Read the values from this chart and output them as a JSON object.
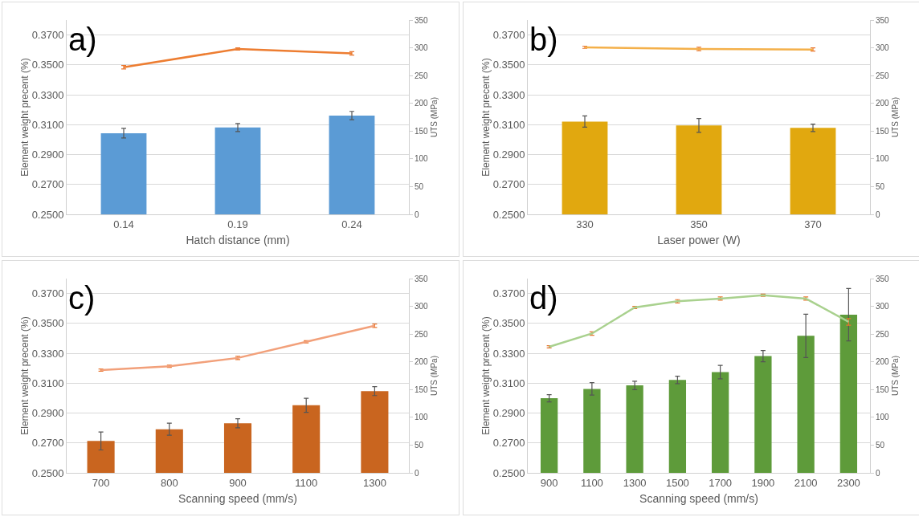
{
  "chart_data": [
    {
      "type": "bar",
      "annotations": [
        "a)"
      ],
      "xlabel": "Hatch distance (mm)",
      "ylabel": "Element weight precent (%)",
      "y2label": "UTS (MPa)",
      "categories": [
        "0.14",
        "0.19",
        "0.24"
      ],
      "series": [
        {
          "color": "#5b9bd5",
          "values": [
            0.3043,
            0.3081,
            0.3161
          ],
          "errors": [
            0.0032,
            0.0027,
            0.0028
          ]
        },
        {
          "type": "line",
          "axis": "y2",
          "color": "#ed7d31",
          "values": [
            265,
            298,
            290
          ],
          "errors": [
            3,
            2,
            3
          ]
        }
      ],
      "ylim": [
        0.25,
        0.38
      ],
      "yticks": [
        {
          "value": 0.25,
          "label": "0.2500"
        },
        {
          "value": 0.27,
          "label": "0.2700"
        },
        {
          "value": 0.29,
          "label": "0.2900"
        },
        {
          "value": 0.31,
          "label": "0.3100"
        },
        {
          "value": 0.33,
          "label": "0.3300"
        },
        {
          "value": 0.35,
          "label": "0.3500"
        },
        {
          "value": 0.37,
          "label": "0.3700"
        }
      ],
      "y2lim": [
        0,
        350
      ],
      "y2ticks": [
        0,
        50,
        100,
        150,
        200,
        250,
        300,
        350
      ],
      "grid": "y"
    },
    {
      "type": "bar",
      "annotations": [
        "b)"
      ],
      "xlabel": "Laser power (W)",
      "ylabel": "Element weight precent (%)",
      "y2label": "UTS (MPa)",
      "categories": [
        "330",
        "350",
        "370"
      ],
      "series": [
        {
          "color": "#e1a80f",
          "values": [
            0.3121,
            0.3095,
            0.3079
          ],
          "errors": [
            0.0038,
            0.0046,
            0.0025
          ]
        },
        {
          "type": "line",
          "axis": "y2",
          "color": "#f4b04a",
          "values": [
            301,
            298,
            297
          ],
          "errors": [
            2,
            3,
            3
          ]
        }
      ],
      "ylim": [
        0.25,
        0.38
      ],
      "yticks": [
        {
          "value": 0.25,
          "label": "0.2500"
        },
        {
          "value": 0.27,
          "label": "0.2700"
        },
        {
          "value": 0.29,
          "label": "0.2900"
        },
        {
          "value": 0.31,
          "label": "0.3100"
        },
        {
          "value": 0.33,
          "label": "0.3300"
        },
        {
          "value": 0.35,
          "label": "0.3500"
        },
        {
          "value": 0.37,
          "label": "0.3700"
        }
      ],
      "y2lim": [
        0,
        350
      ],
      "y2ticks": [
        0,
        50,
        100,
        150,
        200,
        250,
        300,
        350
      ],
      "grid": "y"
    },
    {
      "type": "bar",
      "annotations": [
        "c)"
      ],
      "xlabel": "Scanning speed (mm/s)",
      "ylabel": "Element weight precent (%)",
      "y2label": "UTS (MPa)",
      "categories": [
        "700",
        "800",
        "900",
        "1100",
        "1300"
      ],
      "series": [
        {
          "color": "#c9651f",
          "values": [
            0.2713,
            0.2792,
            0.2832,
            0.2952,
            0.3047
          ],
          "errors": [
            0.006,
            0.004,
            0.003,
            0.0047,
            0.003
          ]
        },
        {
          "type": "line",
          "axis": "y2",
          "color": "#f2a07a",
          "values": [
            185,
            192,
            207,
            236,
            265
          ],
          "errors": [
            2,
            2,
            3,
            2,
            3
          ]
        }
      ],
      "ylim": [
        0.25,
        0.38
      ],
      "yticks": [
        {
          "value": 0.25,
          "label": "0.2500"
        },
        {
          "value": 0.27,
          "label": "0.2700"
        },
        {
          "value": 0.29,
          "label": "0.2900"
        },
        {
          "value": 0.31,
          "label": "0.3100"
        },
        {
          "value": 0.33,
          "label": "0.3300"
        },
        {
          "value": 0.35,
          "label": "0.3500"
        },
        {
          "value": 0.37,
          "label": "0.3700"
        }
      ],
      "y2lim": [
        0,
        350
      ],
      "y2ticks": [
        0,
        50,
        100,
        150,
        200,
        250,
        300,
        350
      ],
      "grid": "y"
    },
    {
      "type": "bar",
      "annotations": [
        "d)"
      ],
      "xlabel": "Scanning speed (mm/s)",
      "ylabel": "Element weight precent (%)",
      "y2label": "UTS (MPa)",
      "categories": [
        "900",
        "1100",
        "1300",
        "1500",
        "1700",
        "1900",
        "2100",
        "2300"
      ],
      "series": [
        {
          "color": "#5e9b3a",
          "values": [
            0.2999,
            0.3062,
            0.3085,
            0.3122,
            0.3174,
            0.3281,
            0.3417,
            0.3558
          ],
          "errors": [
            0.0024,
            0.0042,
            0.0028,
            0.0025,
            0.0045,
            0.0038,
            0.0145,
            0.0175
          ]
        },
        {
          "type": "line",
          "axis": "y2",
          "color": "#a9d18e",
          "values": [
            227,
            251,
            298,
            309,
            314,
            320,
            314,
            272
          ],
          "errors": [
            2,
            3,
            2,
            3,
            3,
            2,
            3,
            6
          ]
        }
      ],
      "ylim": [
        0.25,
        0.38
      ],
      "yticks": [
        {
          "value": 0.25,
          "label": "0.2500"
        },
        {
          "value": 0.27,
          "label": "0.2700"
        },
        {
          "value": 0.29,
          "label": "0.2900"
        },
        {
          "value": 0.31,
          "label": "0.3100"
        },
        {
          "value": 0.33,
          "label": "0.3300"
        },
        {
          "value": 0.35,
          "label": "0.3500"
        },
        {
          "value": 0.37,
          "label": "0.3700"
        }
      ],
      "y2lim": [
        0,
        350
      ],
      "y2ticks": [
        0,
        50,
        100,
        150,
        200,
        250,
        300,
        350
      ],
      "grid": "y"
    }
  ]
}
